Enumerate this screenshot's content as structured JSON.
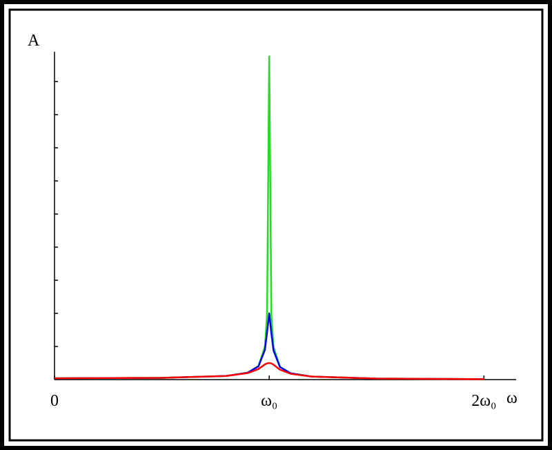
{
  "chart_data": {
    "type": "line",
    "y_label": "A",
    "x_label": "ω",
    "x": [
      0,
      0.5,
      0.8,
      0.9,
      0.95,
      0.98,
      0.99,
      1.0,
      1.01,
      1.02,
      1.05,
      1.1,
      1.2,
      1.5,
      2.0
    ],
    "series": [
      {
        "name": "green",
        "color": "#22dd22",
        "values": [
          0.04,
          0.053,
          0.11,
          0.21,
          0.41,
          1.0,
          1.97,
          9.76,
          1.95,
          0.98,
          0.39,
          0.19,
          0.09,
          0.032,
          0.013
        ]
      },
      {
        "name": "blue",
        "color": "#0000ee",
        "values": [
          0.04,
          0.053,
          0.11,
          0.21,
          0.4,
          0.9,
          1.42,
          2.0,
          1.4,
          0.88,
          0.38,
          0.19,
          0.09,
          0.032,
          0.013
        ]
      },
      {
        "name": "red",
        "color": "#ff0000",
        "values": [
          0.04,
          0.053,
          0.11,
          0.197,
          0.32,
          0.46,
          0.49,
          0.5,
          0.49,
          0.45,
          0.3,
          0.175,
          0.09,
          0.032,
          0.013
        ]
      }
    ],
    "xlim": [
      0,
      2.15
    ],
    "ylim": [
      0,
      9.9
    ],
    "xticks": [
      0,
      {
        "value": 1,
        "label": "ω₀"
      },
      {
        "value": 2,
        "label": "2ω₀"
      }
    ],
    "ytick_marks": [
      1,
      2,
      3,
      4,
      5,
      6,
      7,
      8,
      9
    ]
  }
}
